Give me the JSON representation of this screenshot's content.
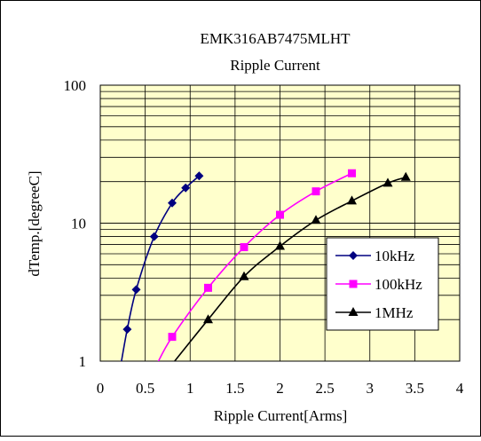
{
  "chart_data": {
    "type": "line",
    "title": "EMK316AB7475MLHT",
    "subtitle": "Ripple Current",
    "xlabel": "Ripple Current[Arms]",
    "ylabel": "dTemp.[degreeC]",
    "xlim": [
      0,
      4
    ],
    "ylim": [
      1,
      100
    ],
    "y_scale": "log",
    "x_ticks": [
      "0",
      "0.5",
      "1",
      "1.5",
      "2",
      "2.5",
      "3",
      "3.5",
      "4"
    ],
    "y_ticks": [
      "1",
      "10",
      "100"
    ],
    "grid": true,
    "plot_background": "#ffffcc",
    "legend_position": "right",
    "series": [
      {
        "name": "10kHz",
        "color": "#000080",
        "marker": "diamond",
        "x": [
          0.3,
          0.4,
          0.6,
          0.8,
          0.95,
          1.1
        ],
        "y": [
          1.7,
          3.3,
          8.0,
          14.0,
          18.0,
          22.0
        ],
        "curve_x": [
          0.23,
          0.3,
          0.4,
          0.6,
          0.8,
          0.95,
          1.1
        ],
        "curve_y": [
          0.95,
          1.7,
          3.3,
          8.0,
          14.0,
          18.0,
          22.0
        ]
      },
      {
        "name": "100kHz",
        "color": "#ff00ff",
        "marker": "square",
        "x": [
          0.8,
          1.2,
          1.6,
          2.0,
          2.4,
          2.8
        ],
        "y": [
          1.5,
          3.4,
          6.7,
          11.5,
          17.0,
          23.0
        ],
        "curve_x": [
          0.63,
          0.8,
          1.2,
          1.6,
          2.0,
          2.4,
          2.8
        ],
        "curve_y": [
          0.95,
          1.5,
          3.4,
          6.7,
          11.5,
          17.0,
          23.0
        ]
      },
      {
        "name": "1MHz",
        "color": "#000000",
        "marker": "triangle",
        "x": [
          1.2,
          1.6,
          2.0,
          2.4,
          2.8,
          3.2,
          3.4
        ],
        "y": [
          2.0,
          4.1,
          6.8,
          10.5,
          14.5,
          19.5,
          21.5
        ],
        "curve_x": [
          0.8,
          1.2,
          1.6,
          2.0,
          2.4,
          2.8,
          3.2,
          3.4
        ],
        "curve_y": [
          0.95,
          2.0,
          4.1,
          6.8,
          10.5,
          14.5,
          19.5,
          21.5
        ]
      }
    ]
  }
}
